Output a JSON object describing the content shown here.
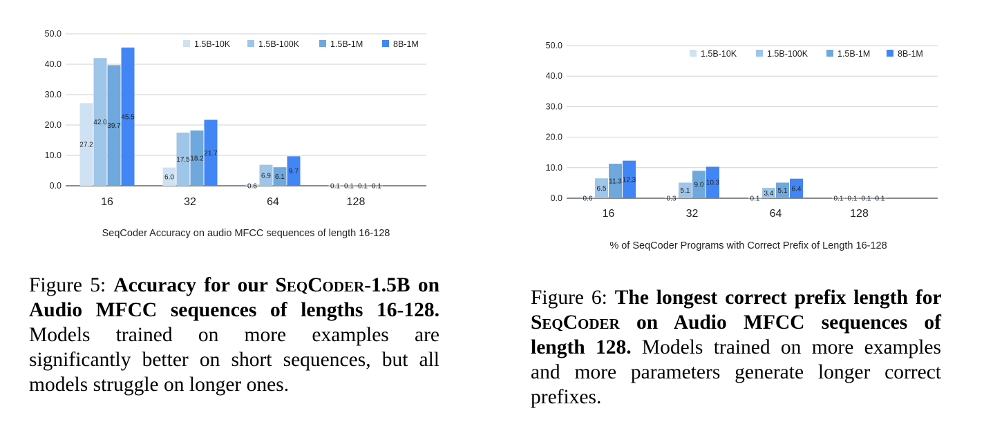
{
  "chart_data": [
    {
      "type": "bar",
      "title": "SeqCoder Accuracy on audio MFCC sequences of length 16-128",
      "categories": [
        "16",
        "32",
        "64",
        "128"
      ],
      "ylim": [
        0,
        50
      ],
      "yticks": [
        "0.0",
        "10.0",
        "20.0",
        "30.0",
        "40.0",
        "50.0"
      ],
      "grid": true,
      "legend_position": "top-right",
      "series": [
        {
          "name": "1.5B-10K",
          "values": [
            27.2,
            6.0,
            0.6,
            0.1
          ],
          "labels": [
            "27.2",
            "6.0",
            "0.6",
            "0.1"
          ]
        },
        {
          "name": "1.5B-100K",
          "values": [
            42.0,
            17.5,
            6.9,
            0.1
          ],
          "labels": [
            "42.0",
            "17.5",
            "6.9",
            "0.1"
          ]
        },
        {
          "name": "1.5B-1M",
          "values": [
            39.7,
            18.2,
            6.1,
            0.1
          ],
          "labels": [
            "39.7",
            "18.2",
            "6.1",
            "0.1"
          ]
        },
        {
          "name": "8B-1M",
          "values": [
            45.5,
            21.7,
            9.7,
            0.1
          ],
          "labels": [
            "45.5",
            "21.7",
            "9.7",
            "0.1"
          ]
        }
      ]
    },
    {
      "type": "bar",
      "title": "% of SeqCoder Programs with Correct Prefix of Length 16-128",
      "categories": [
        "16",
        "32",
        "64",
        "128"
      ],
      "ylim": [
        0,
        50
      ],
      "yticks": [
        "0.0",
        "10.0",
        "20.0",
        "30.0",
        "40.0",
        "50.0"
      ],
      "grid": true,
      "legend_position": "top-right",
      "series": [
        {
          "name": "1.5B-10K",
          "values": [
            0.6,
            0.3,
            0.1,
            0.1
          ],
          "labels": [
            "0.6",
            "0.3",
            "0.1",
            "0.1"
          ]
        },
        {
          "name": "1.5B-100K",
          "values": [
            6.5,
            5.1,
            3.4,
            0.1
          ],
          "labels": [
            "6.5",
            "5.1",
            "3.4",
            "0.1"
          ]
        },
        {
          "name": "1.5B-1M",
          "values": [
            11.3,
            9.0,
            5.1,
            0.1
          ],
          "labels": [
            "11.3",
            "9.0",
            "5.1",
            "0.1"
          ]
        },
        {
          "name": "8B-1M",
          "values": [
            12.3,
            10.3,
            6.4,
            0.1
          ],
          "labels": [
            "12.3",
            "10.3",
            "6.4",
            "0.1"
          ]
        }
      ]
    }
  ],
  "colors": [
    "#cfe2f3",
    "#9fc5e8",
    "#6fa8dc",
    "#4285f4"
  ],
  "captions": {
    "fig5": {
      "label": "Figure 5:",
      "bold_a": "Accuracy for our",
      "bold_sc": "SeqCoder",
      "bold_b": "-1.5B on Audio MFCC sequences of lengths 16-128.",
      "rest": "Models trained on more examples are significantly better on short sequences, but all models struggle on longer ones."
    },
    "fig6": {
      "label": "Figure 6:",
      "bold_a": "The longest correct prefix length for",
      "bold_sc": "SeqCoder",
      "bold_b": "on Audio MFCC sequences of length 128.",
      "rest": "Models trained on more examples and more parameters generate longer correct prefixes."
    }
  }
}
